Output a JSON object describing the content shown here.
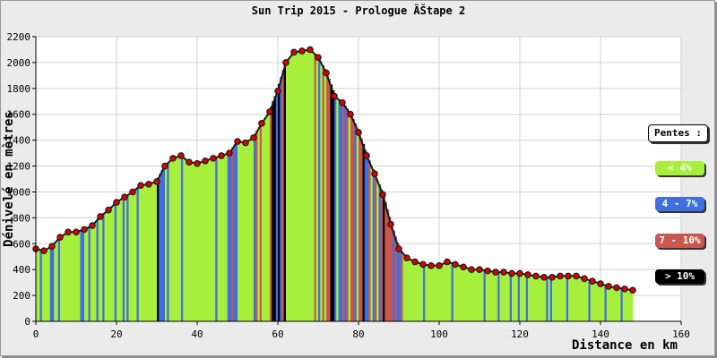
{
  "chart_data": {
    "type": "area",
    "title": "Sun Trip 2015 - Prologue ÃŠtape 2",
    "xlabel": "Distance en km",
    "ylabel": "Dénivelé en mètres",
    "xlim": [
      0,
      160
    ],
    "ylim": [
      0,
      2200
    ],
    "x_ticks": [
      "0",
      "20",
      "40",
      "60",
      "80",
      "100",
      "120",
      "140",
      "160"
    ],
    "y_ticks": [
      "0",
      "200",
      "400",
      "600",
      "800",
      "1000",
      "1200",
      "1400",
      "1600",
      "1800",
      "2000",
      "2200"
    ],
    "grid": true,
    "legend_placement": "right",
    "series": [
      {
        "x": [
          0,
          2,
          4,
          6,
          8,
          10,
          12,
          14,
          16,
          18,
          20,
          22,
          24,
          26,
          28,
          30,
          32,
          34,
          36,
          38,
          40,
          42,
          44,
          46,
          48,
          50,
          52,
          54,
          56,
          58,
          60,
          62,
          64,
          66,
          68,
          70,
          72,
          74,
          76,
          78,
          80,
          82,
          84,
          86,
          88,
          90,
          92,
          94,
          96,
          98,
          100,
          102,
          104,
          106,
          108,
          110,
          112,
          114,
          116,
          118,
          120,
          122,
          124,
          126,
          128,
          130,
          132,
          134,
          136,
          138,
          140,
          142,
          144,
          146,
          148
        ],
        "y": [
          560,
          545,
          580,
          650,
          690,
          690,
          710,
          740,
          810,
          860,
          920,
          960,
          1000,
          1050,
          1060,
          1080,
          1200,
          1260,
          1280,
          1230,
          1220,
          1240,
          1260,
          1280,
          1300,
          1390,
          1380,
          1420,
          1530,
          1620,
          1780,
          2000,
          2080,
          2090,
          2100,
          2040,
          1920,
          1740,
          1690,
          1600,
          1460,
          1280,
          1140,
          980,
          750,
          560,
          490,
          460,
          440,
          430,
          430,
          460,
          440,
          420,
          400,
          400,
          390,
          380,
          380,
          370,
          370,
          360,
          350,
          340,
          340,
          350,
          350,
          350,
          330,
          310,
          290,
          270,
          260,
          250,
          240
        ]
      }
    ],
    "legend": {
      "title": "Pentes :",
      "items": [
        {
          "label": "< 4%",
          "color": "#a6f03c"
        },
        {
          "label": "4 - 7%",
          "color": "#3f6fe0"
        },
        {
          "label": "7 - 10%",
          "color": "#c9574f"
        },
        {
          "label": "> 10%",
          "color": "#000000"
        }
      ]
    },
    "colors": {
      "gentle": "#a6f03c",
      "moderate": "#3f6fe0",
      "steep": "#c9574f",
      "very_steep": "#000000",
      "marker_fill": "#e00000",
      "marker_stroke": "#1a1a1a"
    }
  }
}
